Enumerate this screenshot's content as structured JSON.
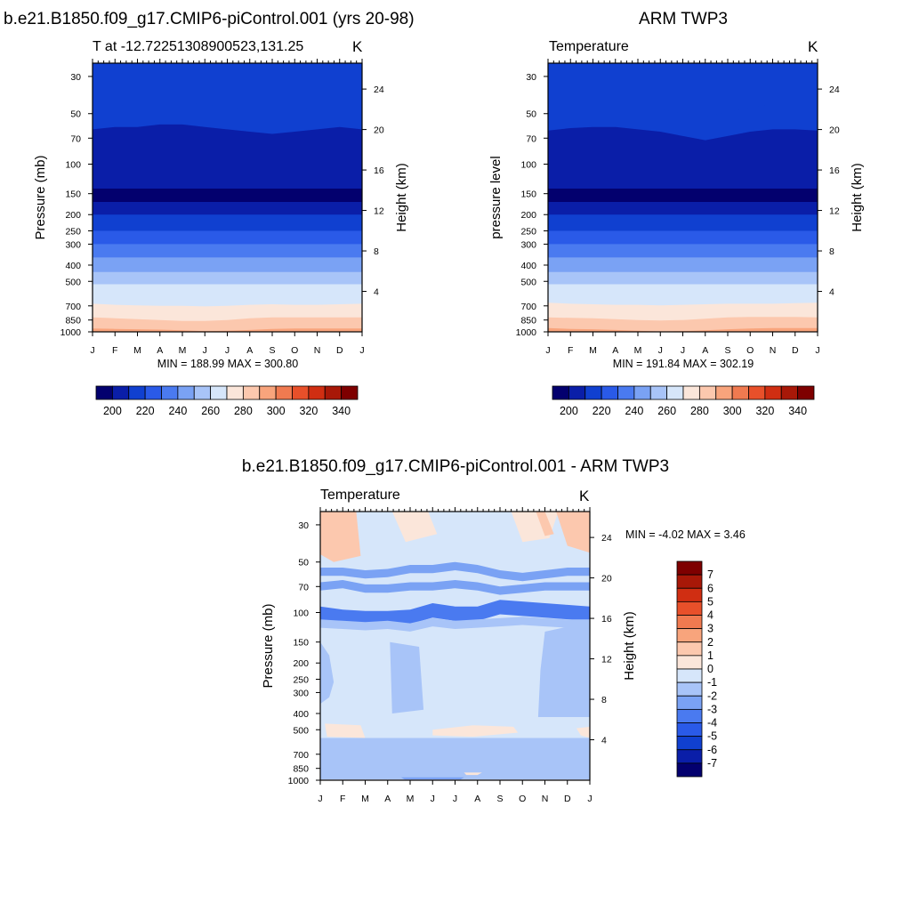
{
  "chart_data": [
    {
      "id": "model",
      "type": "contour",
      "figure_title": "b.e21.B1850.f09_g17.CMIP6-piControl.001 (yrs 20-98)",
      "subtitle_left": "T at -12.72251308900523,131.25",
      "subtitle_right": "K",
      "ylabel": "Pressure (mb)",
      "ylabel_right": "Height (km)",
      "x_ticks": [
        "J",
        "F",
        "M",
        "A",
        "M",
        "J",
        "J",
        "A",
        "S",
        "O",
        "N",
        "D",
        "J"
      ],
      "y_ticks": [
        30,
        50,
        70,
        100,
        150,
        200,
        250,
        300,
        400,
        500,
        700,
        850,
        1000
      ],
      "y_ticks_right": [
        24,
        20,
        16,
        12,
        8,
        4
      ],
      "ylim": [
        25,
        1000
      ],
      "stats": "MIN = 188.99 MAX = 300.80",
      "colorbar": {
        "levels": [
          195,
          200,
          210,
          220,
          230,
          240,
          250,
          260,
          270,
          280,
          290,
          300,
          310,
          320,
          330,
          340,
          345
        ],
        "labels": [
          200,
          220,
          240,
          260,
          280,
          300,
          320,
          340
        ]
      },
      "bands": [
        {
          "p": [
            62,
            60,
            60,
            58,
            58,
            60,
            62,
            64,
            66,
            64,
            62,
            60,
            62
          ],
          "value": 200
        },
        {
          "p": [
            46,
            45,
            44,
            43,
            43,
            44,
            46,
            48,
            49,
            48,
            46,
            45,
            46
          ],
          "value": 215
        },
        {
          "p": [
            140,
            140,
            140,
            140,
            140,
            140,
            140,
            140,
            140,
            140,
            140,
            140,
            140
          ],
          "value": 190
        },
        {
          "p": [
            168,
            168,
            168,
            168,
            168,
            168,
            168,
            168,
            168,
            168,
            168,
            168,
            168
          ],
          "value": 205
        },
        {
          "p": [
            200,
            200,
            200,
            200,
            200,
            200,
            200,
            200,
            200,
            200,
            200,
            200,
            200
          ],
          "value": 215
        },
        {
          "p": [
            250,
            250,
            250,
            250,
            250,
            250,
            250,
            250,
            250,
            250,
            250,
            250,
            250
          ],
          "value": 225
        },
        {
          "p": [
            300,
            300,
            300,
            300,
            300,
            300,
            300,
            300,
            300,
            300,
            300,
            300,
            300
          ],
          "value": 235
        },
        {
          "p": [
            360,
            360,
            360,
            360,
            360,
            360,
            360,
            360,
            360,
            360,
            360,
            360,
            360
          ],
          "value": 245
        },
        {
          "p": [
            440,
            440,
            440,
            440,
            440,
            440,
            440,
            440,
            440,
            440,
            440,
            440,
            440
          ],
          "value": 255
        },
        {
          "p": [
            520,
            520,
            520,
            520,
            520,
            520,
            520,
            520,
            520,
            520,
            520,
            520,
            520
          ],
          "value": 265
        },
        {
          "p": [
            680,
            690,
            695,
            700,
            700,
            705,
            700,
            690,
            685,
            690,
            690,
            685,
            680
          ],
          "value": 275
        },
        {
          "p": [
            820,
            830,
            840,
            850,
            860,
            860,
            850,
            830,
            820,
            820,
            820,
            820,
            820
          ],
          "value": 285
        },
        {
          "p": [
            955,
            960,
            965,
            970,
            980,
            990,
            985,
            975,
            960,
            955,
            955,
            955,
            955
          ],
          "value": 295
        },
        {
          "p": [
            1000,
            1000,
            1000,
            1000,
            1000,
            1000,
            1000,
            1000,
            1000,
            1000,
            1000,
            1000,
            1000
          ],
          "value": 305
        }
      ]
    },
    {
      "id": "obs",
      "type": "contour",
      "figure_title": "ARM TWP3",
      "subtitle_left": "Temperature",
      "subtitle_right": "K",
      "ylabel": "pressure level",
      "ylabel_right": "Height (km)",
      "x_ticks": [
        "J",
        "F",
        "M",
        "A",
        "M",
        "J",
        "J",
        "A",
        "S",
        "O",
        "N",
        "D",
        "J"
      ],
      "y_ticks": [
        30,
        50,
        70,
        100,
        150,
        200,
        250,
        300,
        400,
        500,
        700,
        850,
        1000
      ],
      "y_ticks_right": [
        24,
        20,
        16,
        12,
        8,
        4
      ],
      "ylim": [
        25,
        1000
      ],
      "stats": "MIN = 191.84 MAX = 302.19",
      "colorbar": {
        "levels": [
          195,
          200,
          210,
          220,
          230,
          240,
          250,
          260,
          270,
          280,
          290,
          300,
          310,
          320,
          330,
          340,
          345
        ],
        "labels": [
          200,
          220,
          240,
          260,
          280,
          300,
          320,
          340
        ]
      },
      "bands": [
        {
          "p": [
            63,
            61,
            60,
            60,
            62,
            64,
            68,
            72,
            68,
            64,
            62,
            62,
            63
          ],
          "value": 200
        },
        {
          "p": [
            45,
            44,
            44,
            44,
            45,
            47,
            50,
            52,
            49,
            46,
            44,
            44,
            45
          ],
          "value": 215
        },
        {
          "p": [
            140,
            140,
            140,
            140,
            140,
            140,
            140,
            140,
            140,
            140,
            140,
            140,
            140
          ],
          "value": 190
        },
        {
          "p": [
            168,
            168,
            168,
            168,
            168,
            168,
            168,
            168,
            168,
            168,
            168,
            168,
            168
          ],
          "value": 205
        },
        {
          "p": [
            200,
            200,
            200,
            200,
            200,
            200,
            200,
            200,
            200,
            200,
            200,
            200,
            200
          ],
          "value": 215
        },
        {
          "p": [
            250,
            250,
            250,
            250,
            250,
            250,
            250,
            250,
            250,
            250,
            250,
            250,
            250
          ],
          "value": 225
        },
        {
          "p": [
            300,
            300,
            300,
            300,
            300,
            300,
            300,
            300,
            300,
            300,
            300,
            300,
            300
          ],
          "value": 235
        },
        {
          "p": [
            360,
            360,
            360,
            360,
            360,
            360,
            360,
            360,
            360,
            360,
            360,
            360,
            360
          ],
          "value": 245
        },
        {
          "p": [
            440,
            440,
            440,
            440,
            440,
            440,
            440,
            440,
            440,
            440,
            440,
            440,
            440
          ],
          "value": 255
        },
        {
          "p": [
            520,
            520,
            520,
            520,
            520,
            520,
            520,
            520,
            520,
            520,
            520,
            520,
            520
          ],
          "value": 265
        },
        {
          "p": [
            670,
            680,
            685,
            690,
            690,
            695,
            690,
            685,
            680,
            680,
            680,
            675,
            670
          ],
          "value": 275
        },
        {
          "p": [
            820,
            825,
            830,
            840,
            850,
            855,
            850,
            835,
            820,
            815,
            815,
            815,
            820
          ],
          "value": 285
        },
        {
          "p": [
            950,
            960,
            965,
            975,
            985,
            995,
            990,
            980,
            965,
            955,
            950,
            950,
            950
          ],
          "value": 295
        },
        {
          "p": [
            1000,
            1000,
            1000,
            1000,
            1000,
            1000,
            1000,
            1000,
            1000,
            1000,
            1000,
            1000,
            1000
          ],
          "value": 305
        }
      ]
    },
    {
      "id": "diff",
      "type": "contour",
      "figure_title": "b.e21.B1850.f09_g17.CMIP6-piControl.001 - ARM TWP3",
      "subtitle_left": "Temperature",
      "subtitle_right": "K",
      "ylabel": "Pressure (mb)",
      "ylabel_right": "Height (km)",
      "x_ticks": [
        "J",
        "F",
        "M",
        "A",
        "M",
        "J",
        "J",
        "A",
        "S",
        "O",
        "N",
        "D",
        "J"
      ],
      "y_ticks": [
        30,
        50,
        70,
        100,
        150,
        200,
        250,
        300,
        400,
        500,
        700,
        850,
        1000
      ],
      "y_ticks_right": [
        24,
        20,
        16,
        12,
        8,
        4
      ],
      "ylim": [
        25,
        1000
      ],
      "stats": "MIN =  -4.02 MAX =   3.46",
      "colorbar": {
        "levels": [
          -8,
          -7,
          -6,
          -5,
          -4,
          -3,
          -2,
          -1,
          0,
          1,
          2,
          3,
          4,
          5,
          6,
          7,
          8
        ],
        "labels": [
          7,
          6,
          5,
          4,
          3,
          2,
          1,
          0,
          -1,
          -2,
          -3,
          -4,
          -5,
          -6,
          -7
        ]
      },
      "background_value": -0.5,
      "bands": [
        {
          "p": [
            54,
            54,
            56,
            55,
            52,
            52,
            50,
            52,
            56,
            58,
            56,
            54,
            54
          ],
          "value": -2.5
        },
        {
          "p": [
            66,
            64,
            68,
            68,
            66,
            66,
            64,
            66,
            70,
            68,
            66,
            66,
            66
          ],
          "value": -2.5
        },
        {
          "p": [
            92,
            96,
            98,
            98,
            96,
            88,
            92,
            92,
            84,
            86,
            88,
            90,
            92
          ],
          "value": -3.5
        },
        {
          "p": [
            110,
            112,
            114,
            112,
            116,
            108,
            112,
            110,
            108,
            106,
            108,
            110,
            110
          ],
          "value": -1.5
        }
      ],
      "patches": [
        {
          "x": [
            0,
            1.6,
            1.8,
            0.6,
            0
          ],
          "p": [
            25,
            25,
            46,
            50,
            45
          ],
          "value": 1.5
        },
        {
          "x": [
            3.2,
            4.8,
            5.2,
            3.8
          ],
          "p": [
            25,
            25,
            34,
            38
          ],
          "value": 0.5
        },
        {
          "x": [
            8.5,
            10.6,
            10.2,
            9.0
          ],
          "p": [
            25,
            25,
            36,
            38
          ],
          "value": 0.5
        },
        {
          "x": [
            9.6,
            10.0,
            10.4,
            10.0
          ],
          "p": [
            25,
            25,
            34,
            35
          ],
          "value": 1.5
        },
        {
          "x": [
            10.5,
            12,
            12,
            11.0
          ],
          "p": [
            25,
            25,
            44,
            40
          ],
          "value": 1.5
        },
        {
          "x": [
            0,
            0.4,
            0.6,
            0.4,
            0
          ],
          "p": [
            150,
            180,
            260,
            320,
            350
          ],
          "value": -1.5
        },
        {
          "x": [
            3.1,
            4.4,
            4.6,
            3.2
          ],
          "p": [
            150,
            160,
            380,
            400
          ],
          "value": -1.5
        },
        {
          "x": [
            10.0,
            11.2,
            12,
            12,
            9.7,
            9.8
          ],
          "p": [
            130,
            120,
            120,
            420,
            420,
            220
          ],
          "value": -1.5
        },
        {
          "x": [
            0,
            12,
            12,
            0
          ],
          "p": [
            560,
            560,
            1000,
            1000
          ],
          "value": -1.5
        },
        {
          "x": [
            0.2,
            1.8,
            2.0,
            0.3
          ],
          "p": [
            460,
            470,
            560,
            550
          ],
          "value": 0.5
        },
        {
          "x": [
            5.0,
            6.8,
            8.6,
            8.8,
            6.8,
            5.0
          ],
          "p": [
            500,
            470,
            480,
            520,
            550,
            540
          ],
          "value": 0.5
        },
        {
          "x": [
            11.4,
            12,
            12,
            11.6
          ],
          "p": [
            490,
            480,
            560,
            540
          ],
          "value": 0.5
        },
        {
          "x": [
            0,
            12,
            12,
            0
          ],
          "p": [
            720,
            720,
            1000,
            1000
          ],
          "value": -1.5
        },
        {
          "x": [
            6.4,
            7.2,
            7.0,
            6.5
          ],
          "p": [
            900,
            900,
            930,
            930
          ],
          "value": 0.5
        },
        {
          "x": [
            3.6,
            6.4,
            6.2,
            3.8
          ],
          "p": [
            960,
            960,
            1000,
            1000
          ],
          "value": -2.5
        },
        {
          "x": [
            0,
            12,
            12,
            0
          ],
          "p": [
            990,
            990,
            1000,
            1000
          ],
          "value": 0.5
        }
      ]
    }
  ],
  "colors": {
    "palette": [
      "#03006e",
      "#0a1ea8",
      "#1040d0",
      "#2a5ae8",
      "#4a7af0",
      "#7aa2f4",
      "#a8c4f8",
      "#d6e6fa",
      "#fbe6da",
      "#fcc8ae",
      "#f8a47c",
      "#f07a50",
      "#e8502a",
      "#d02e12",
      "#a81808",
      "#7e0000"
    ]
  }
}
